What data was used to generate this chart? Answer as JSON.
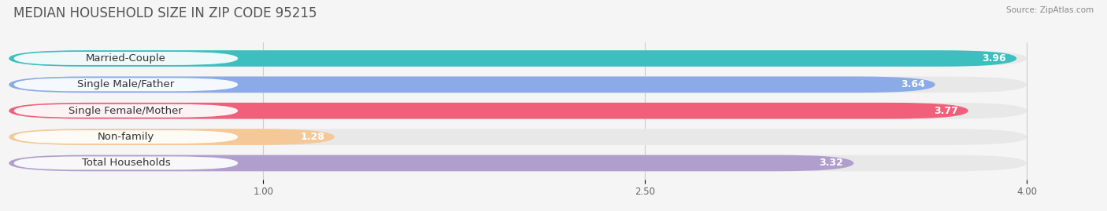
{
  "title": "MEDIAN HOUSEHOLD SIZE IN ZIP CODE 95215",
  "source": "Source: ZipAtlas.com",
  "categories": [
    "Married-Couple",
    "Single Male/Father",
    "Single Female/Mother",
    "Non-family",
    "Total Households"
  ],
  "values": [
    3.96,
    3.64,
    3.77,
    1.28,
    3.32
  ],
  "bar_colors": [
    "#3dbfbf",
    "#8aaae8",
    "#f0607a",
    "#f5c897",
    "#b09fcc"
  ],
  "bar_bg_color": "#e8e8e8",
  "xlim_data": [
    0.0,
    4.25
  ],
  "xmin": 0.0,
  "xmax": 4.0,
  "xticks": [
    1.0,
    2.5,
    4.0
  ],
  "title_fontsize": 12,
  "label_fontsize": 9.5,
  "value_fontsize": 9,
  "background_color": "#f5f5f5",
  "bar_height": 0.62,
  "bar_gap": 1.0
}
